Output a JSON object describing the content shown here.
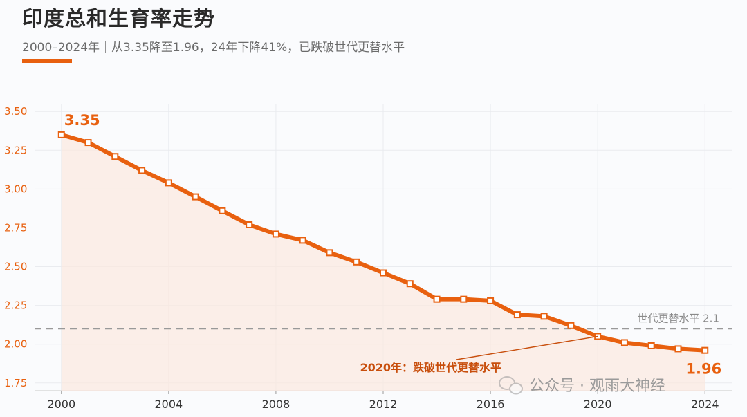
{
  "title": "印度总和生育率走势",
  "subtitle": "2000–2024年｜从3.35降至1.96，24年下降41%，已跌破世代更替水平",
  "colors": {
    "accent": "#e8600f",
    "annotation": "#c84e0c",
    "fill": "#fbe8de",
    "reference": "#999999"
  },
  "chart_data": {
    "type": "line",
    "x": [
      2000,
      2001,
      2002,
      2003,
      2004,
      2005,
      2006,
      2007,
      2008,
      2009,
      2010,
      2011,
      2012,
      2013,
      2014,
      2015,
      2016,
      2017,
      2018,
      2019,
      2020,
      2021,
      2022,
      2023,
      2024
    ],
    "series": [
      {
        "values": [
          3.35,
          3.3,
          3.21,
          3.12,
          3.04,
          2.95,
          2.86,
          2.77,
          2.71,
          2.67,
          2.59,
          2.53,
          2.46,
          2.39,
          2.29,
          2.29,
          2.28,
          2.19,
          2.18,
          2.12,
          2.05,
          2.01,
          1.99,
          1.97,
          1.96
        ]
      }
    ],
    "xlim": [
      1999,
      2025
    ],
    "ylim": [
      1.7,
      3.55
    ],
    "x_ticks": [
      "2000",
      "2004",
      "2008",
      "2012",
      "2016",
      "2020",
      "2024"
    ],
    "y_ticks": [
      "1.75",
      "2.00",
      "2.25",
      "2.50",
      "2.75",
      "3.00",
      "3.25",
      "3.50"
    ],
    "grid": true,
    "reference_line": {
      "value": 2.1,
      "label": "世代更替水平 2.1"
    },
    "start_label": "3.35",
    "end_label": "1.96",
    "annotation": {
      "text": "2020年：跌破世代更替水平",
      "x": 2020,
      "y": 2.05
    }
  },
  "watermark": {
    "text": "公众号 · 观雨大神经",
    "icon": "wechat-icon"
  }
}
